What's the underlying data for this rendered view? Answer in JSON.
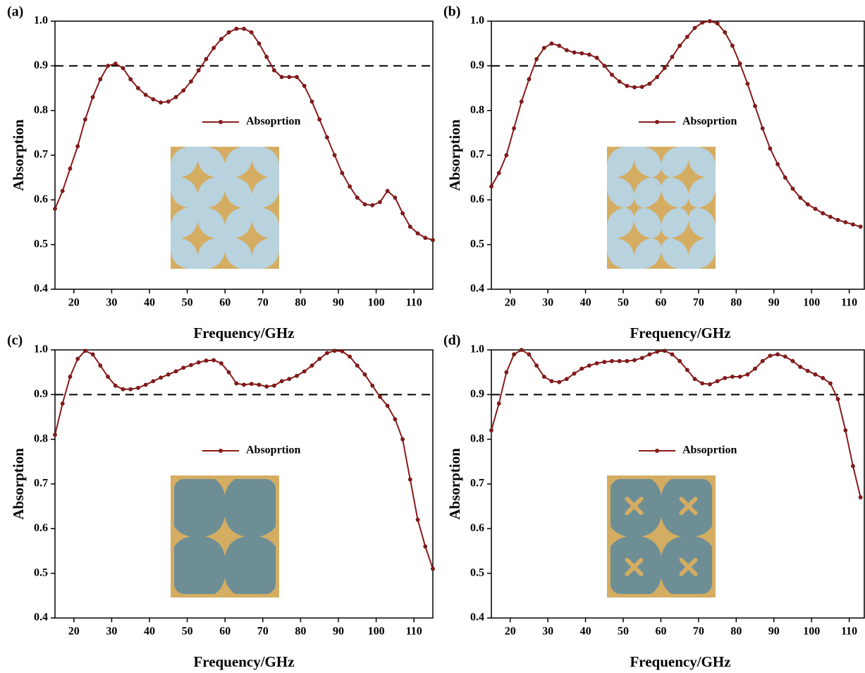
{
  "chart_data": [
    {
      "type": "line",
      "label": "(a)",
      "xlabel": "Frequency/GHz",
      "ylabel": "Absorption",
      "x": [
        15,
        17,
        19,
        21,
        23,
        25,
        27,
        29,
        31,
        33,
        35,
        37,
        39,
        41,
        43,
        45,
        47,
        49,
        51,
        53,
        55,
        57,
        59,
        61,
        63,
        65,
        67,
        69,
        71,
        73,
        75,
        77,
        79,
        81,
        83,
        85,
        87,
        89,
        91,
        93,
        95,
        97,
        99,
        101,
        103,
        105,
        107,
        109,
        111,
        113,
        115
      ],
      "series": [
        {
          "name": "Absoprtion",
          "color": "#8b1a1a",
          "values": [
            0.58,
            0.62,
            0.67,
            0.72,
            0.78,
            0.83,
            0.87,
            0.9,
            0.905,
            0.895,
            0.87,
            0.85,
            0.835,
            0.825,
            0.818,
            0.82,
            0.83,
            0.845,
            0.865,
            0.89,
            0.915,
            0.94,
            0.96,
            0.975,
            0.983,
            0.983,
            0.975,
            0.95,
            0.92,
            0.89,
            0.875,
            0.875,
            0.875,
            0.855,
            0.82,
            0.78,
            0.74,
            0.7,
            0.66,
            0.63,
            0.605,
            0.59,
            0.588,
            0.595,
            0.62,
            0.605,
            0.57,
            0.54,
            0.525,
            0.515,
            0.51
          ]
        }
      ],
      "reference_line": 0.9,
      "xlim": [
        15,
        115
      ],
      "ylim": [
        0.4,
        1.0
      ],
      "xticks": [
        20,
        30,
        40,
        50,
        60,
        70,
        80,
        90,
        100,
        110
      ],
      "yticks": [
        0.4,
        0.5,
        0.6,
        0.7,
        0.8,
        0.9,
        {
          "value": 1,
          "label": "1.0"
        }
      ]
    },
    {
      "type": "line",
      "label": "(b)",
      "xlabel": "Frequency/GHz",
      "ylabel": "Absorption",
      "x": [
        15,
        17,
        19,
        21,
        23,
        25,
        27,
        29,
        31,
        33,
        35,
        37,
        39,
        41,
        43,
        45,
        47,
        49,
        51,
        53,
        55,
        57,
        59,
        61,
        63,
        65,
        67,
        69,
        71,
        73,
        75,
        77,
        79,
        81,
        83,
        85,
        87,
        89,
        91,
        93,
        95,
        97,
        99,
        101,
        103,
        105,
        107,
        109,
        111,
        113
      ],
      "series": [
        {
          "name": "Absoprtion",
          "color": "#8b1a1a",
          "values": [
            0.63,
            0.66,
            0.7,
            0.76,
            0.82,
            0.87,
            0.915,
            0.94,
            0.95,
            0.945,
            0.935,
            0.93,
            0.928,
            0.925,
            0.918,
            0.9,
            0.88,
            0.865,
            0.855,
            0.852,
            0.853,
            0.86,
            0.875,
            0.895,
            0.92,
            0.945,
            0.965,
            0.985,
            0.997,
            1.0,
            0.995,
            0.975,
            0.945,
            0.905,
            0.86,
            0.81,
            0.76,
            0.715,
            0.68,
            0.65,
            0.625,
            0.605,
            0.59,
            0.58,
            0.57,
            0.562,
            0.555,
            0.55,
            0.545,
            0.54
          ]
        }
      ],
      "reference_line": 0.9,
      "xlim": [
        15,
        114
      ],
      "ylim": [
        0.4,
        1.0
      ],
      "xticks": [
        20,
        30,
        40,
        50,
        60,
        70,
        80,
        90,
        100,
        110
      ],
      "yticks": [
        0.4,
        0.5,
        0.6,
        0.7,
        0.8,
        0.9,
        {
          "value": 1,
          "label": "1.0"
        }
      ]
    },
    {
      "type": "line",
      "label": "(c)",
      "xlabel": "Frequency/GHz",
      "ylabel": "Absorption",
      "x": [
        15,
        17,
        19,
        21,
        23,
        25,
        27,
        29,
        31,
        33,
        35,
        37,
        39,
        41,
        43,
        45,
        47,
        49,
        51,
        53,
        55,
        57,
        59,
        61,
        63,
        65,
        67,
        69,
        71,
        73,
        75,
        77,
        79,
        81,
        83,
        85,
        87,
        89,
        91,
        93,
        95,
        97,
        99,
        101,
        103,
        105,
        107,
        109,
        111,
        113,
        115
      ],
      "series": [
        {
          "name": "Absoprtion",
          "color": "#8b1a1a",
          "values": [
            0.81,
            0.88,
            0.94,
            0.98,
            0.998,
            0.99,
            0.965,
            0.94,
            0.92,
            0.912,
            0.912,
            0.915,
            0.922,
            0.93,
            0.938,
            0.945,
            0.952,
            0.96,
            0.966,
            0.972,
            0.976,
            0.977,
            0.97,
            0.95,
            0.925,
            0.922,
            0.924,
            0.922,
            0.918,
            0.92,
            0.93,
            0.935,
            0.942,
            0.952,
            0.965,
            0.98,
            0.993,
            0.998,
            0.997,
            0.985,
            0.965,
            0.945,
            0.92,
            0.895,
            0.875,
            0.845,
            0.8,
            0.71,
            0.62,
            0.56,
            0.51
          ]
        }
      ],
      "reference_line": 0.9,
      "xlim": [
        15,
        115
      ],
      "ylim": [
        0.4,
        1.0
      ],
      "xticks": [
        20,
        30,
        40,
        50,
        60,
        70,
        80,
        90,
        100,
        110
      ],
      "yticks": [
        0.4,
        0.5,
        0.6,
        0.7,
        0.8,
        0.9,
        {
          "value": 1,
          "label": "1.0"
        }
      ]
    },
    {
      "type": "line",
      "label": "(d)",
      "xlabel": "Frequency/GHz",
      "ylabel": "Absorption",
      "x": [
        15,
        17,
        19,
        21,
        23,
        25,
        27,
        29,
        31,
        33,
        35,
        37,
        39,
        41,
        43,
        45,
        47,
        49,
        51,
        53,
        55,
        57,
        59,
        61,
        63,
        65,
        67,
        69,
        71,
        73,
        75,
        77,
        79,
        81,
        83,
        85,
        87,
        89,
        91,
        93,
        95,
        97,
        99,
        101,
        103,
        105,
        107,
        109,
        111,
        113
      ],
      "series": [
        {
          "name": "Absoprtion",
          "color": "#8b1a1a",
          "values": [
            0.82,
            0.88,
            0.95,
            0.99,
            1.0,
            0.99,
            0.965,
            0.94,
            0.93,
            0.928,
            0.935,
            0.947,
            0.958,
            0.965,
            0.97,
            0.973,
            0.975,
            0.975,
            0.975,
            0.977,
            0.982,
            0.99,
            0.996,
            0.998,
            0.99,
            0.975,
            0.955,
            0.935,
            0.925,
            0.923,
            0.93,
            0.937,
            0.94,
            0.94,
            0.945,
            0.958,
            0.975,
            0.987,
            0.99,
            0.985,
            0.975,
            0.962,
            0.953,
            0.945,
            0.937,
            0.925,
            0.89,
            0.82,
            0.74,
            0.67
          ]
        }
      ],
      "reference_line": 0.9,
      "xlim": [
        15,
        114
      ],
      "ylim": [
        0.4,
        1.0
      ],
      "xticks": [
        20,
        30,
        40,
        50,
        60,
        70,
        80,
        90,
        100,
        110
      ],
      "yticks": [
        0.4,
        0.5,
        0.6,
        0.7,
        0.8,
        0.9,
        {
          "value": 1,
          "label": "1.0"
        }
      ]
    }
  ]
}
